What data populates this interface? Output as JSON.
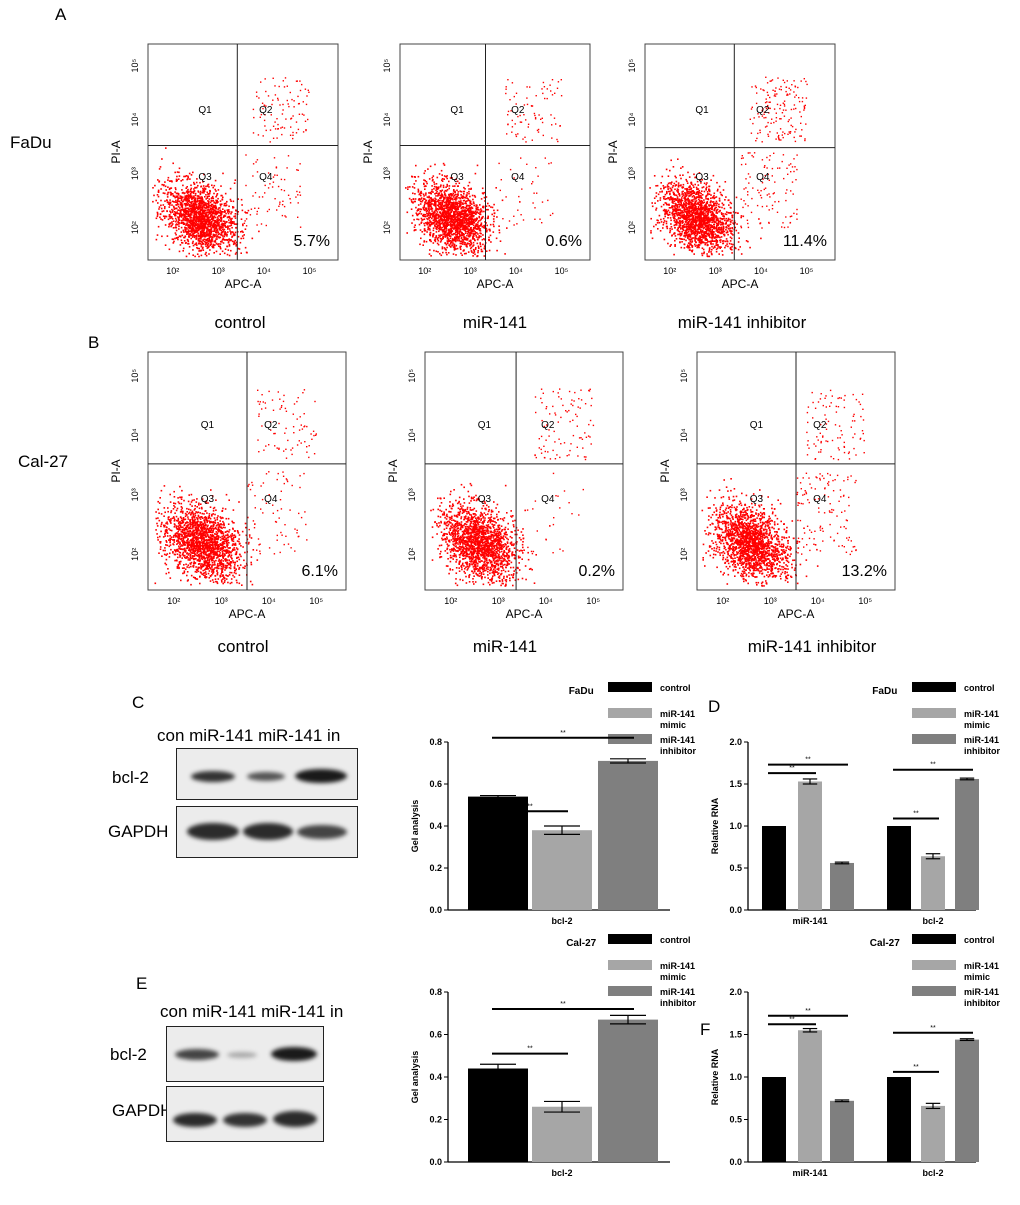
{
  "panel_letters": {
    "a": "A",
    "b": "B",
    "c": "C",
    "d": "D",
    "e": "E",
    "f": "F"
  },
  "row_labels": {
    "fadu": "FaDu",
    "cal27": "Cal-27"
  },
  "flow_axes": {
    "ylabel": "PI-A",
    "xlabel": "APC-A",
    "xticks": [
      "10²",
      "10³",
      "10⁴",
      "10⁵"
    ],
    "yticks": [
      "10²",
      "10³",
      "10⁴",
      "10⁵"
    ],
    "quadrants": [
      "Q1",
      "Q2",
      "Q3",
      "Q4"
    ]
  },
  "flow_plots": [
    {
      "row": "FaDu",
      "condition": "control",
      "percent": "5.7%"
    },
    {
      "row": "FaDu",
      "condition": "miR-141",
      "percent": "0.6%"
    },
    {
      "row": "FaDu",
      "condition": "miR-141 inhibitor",
      "percent": "11.4%"
    },
    {
      "row": "Cal-27",
      "condition": "control",
      "percent": "6.1%"
    },
    {
      "row": "Cal-27",
      "condition": "miR-141",
      "percent": "0.2%"
    },
    {
      "row": "Cal-27",
      "condition": "miR-141 inhibitor",
      "percent": "13.2%"
    }
  ],
  "western": {
    "lanes": "con miR-141 miR-141 in",
    "bcl2": "bcl-2",
    "gapdh": "GAPDH"
  },
  "colors": {
    "control": "#000000",
    "mimic": "#a6a6a6",
    "inhibitor": "#7f7f7f",
    "dots": "#ff0000"
  },
  "chart_data": [
    {
      "type": "bar",
      "title": "FaDu",
      "ylabel": "Gel analysis",
      "ylim": [
        0,
        0.8
      ],
      "yticks": [
        "0.0",
        "0.2",
        "0.4",
        "0.6",
        "0.8"
      ],
      "categories": [
        "bcl-2"
      ],
      "legend": [
        "control",
        "miR-141 mimic",
        "miR-141 inhibitor"
      ],
      "series": [
        {
          "name": "control",
          "values": [
            0.54
          ],
          "err": [
            0.005
          ]
        },
        {
          "name": "miR-141 mimic",
          "values": [
            0.38
          ],
          "err": [
            0.02
          ]
        },
        {
          "name": "miR-141 inhibitor",
          "values": [
            0.71
          ],
          "err": [
            0.01
          ]
        }
      ],
      "significance": "**"
    },
    {
      "type": "bar",
      "title": "FaDu",
      "ylabel": "Relative RNA",
      "ylim": [
        0,
        2.0
      ],
      "yticks": [
        "0.0",
        "0.5",
        "1.0",
        "1.5",
        "2.0"
      ],
      "categories": [
        "miR-141",
        "bcl-2"
      ],
      "legend": [
        "control",
        "miR-141 mimic",
        "miR-141 inhibitor"
      ],
      "series": [
        {
          "name": "control",
          "values": [
            1.0,
            1.0
          ],
          "err": [
            0,
            0
          ]
        },
        {
          "name": "miR-141 mimic",
          "values": [
            1.53,
            0.64
          ],
          "err": [
            0.03,
            0.03
          ]
        },
        {
          "name": "miR-141 inhibitor",
          "values": [
            0.56,
            1.56
          ],
          "err": [
            0.01,
            0.01
          ]
        }
      ],
      "significance": "**"
    },
    {
      "type": "bar",
      "title": "Cal-27",
      "ylabel": "Gel analysis",
      "ylim": [
        0,
        0.8
      ],
      "yticks": [
        "0.0",
        "0.2",
        "0.4",
        "0.6",
        "0.8"
      ],
      "categories": [
        "bcl-2"
      ],
      "legend": [
        "control",
        "miR-141 mimic",
        "miR-141 inhibitor"
      ],
      "series": [
        {
          "name": "control",
          "values": [
            0.44
          ],
          "err": [
            0.02
          ]
        },
        {
          "name": "miR-141 mimic",
          "values": [
            0.26
          ],
          "err": [
            0.025
          ]
        },
        {
          "name": "miR-141 inhibitor",
          "values": [
            0.67
          ],
          "err": [
            0.02
          ]
        }
      ],
      "significance": "**"
    },
    {
      "type": "bar",
      "title": "Cal-27",
      "ylabel": "Relative RNA",
      "ylim": [
        0,
        2.0
      ],
      "yticks": [
        "0.0",
        "0.5",
        "1.0",
        "1.5",
        "2.0"
      ],
      "categories": [
        "miR-141",
        "bcl-2"
      ],
      "legend": [
        "control",
        "miR-141 mimic",
        "miR-141 inhibitor"
      ],
      "series": [
        {
          "name": "control",
          "values": [
            1.0,
            1.0
          ],
          "err": [
            0,
            0
          ]
        },
        {
          "name": "miR-141 mimic",
          "values": [
            1.55,
            0.66
          ],
          "err": [
            0.02,
            0.03
          ]
        },
        {
          "name": "miR-141 inhibitor",
          "values": [
            0.72,
            1.44
          ],
          "err": [
            0.01,
            0.01
          ]
        }
      ],
      "significance": "**"
    }
  ]
}
